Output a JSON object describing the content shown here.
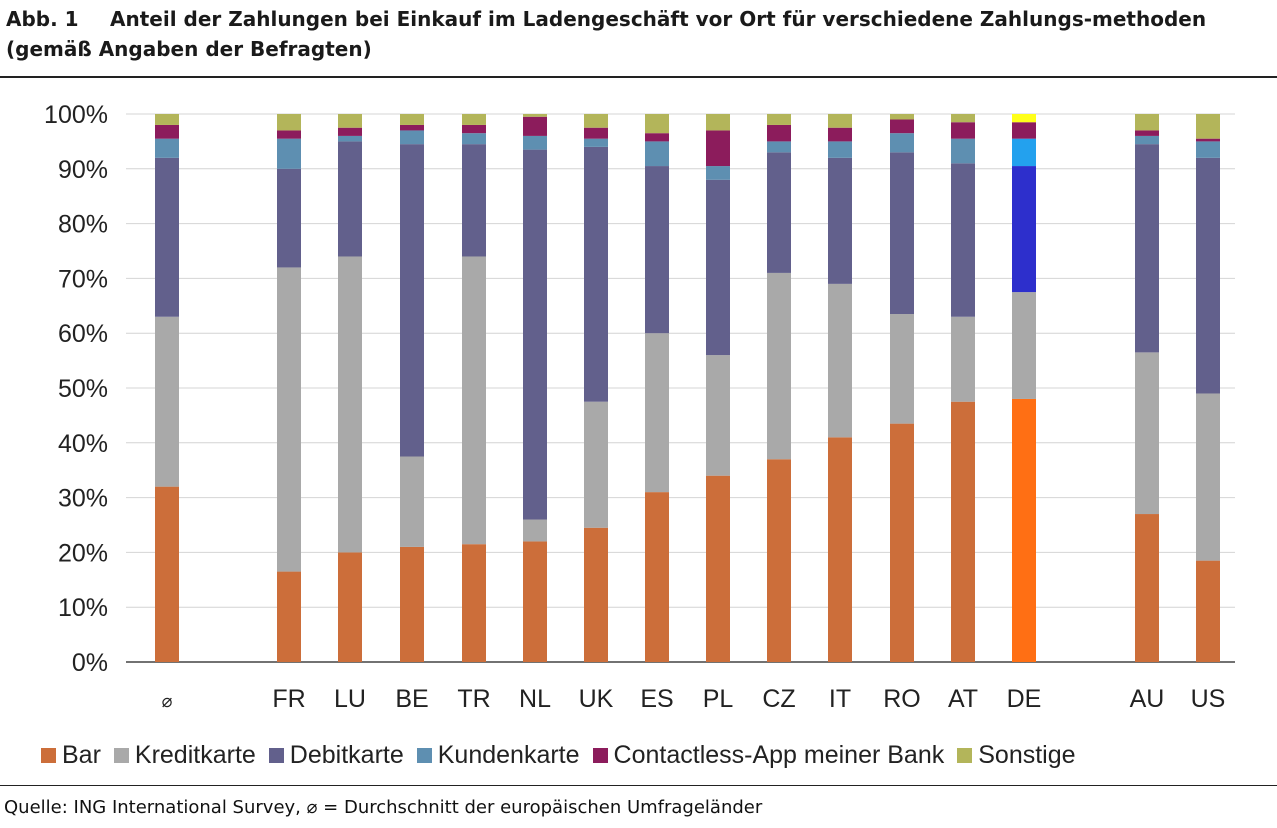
{
  "figure": {
    "label": "Abb. 1",
    "title": "Anteil der Zahlungen bei Einkauf im Ladengeschäft vor Ort für verschiedene Zahlungs-methoden (gemäß Angaben der Befragten)",
    "source": "Quelle: ING International Survey, ⌀ = Durchschnitt der europäischen Umfrageländer"
  },
  "colors": {
    "Bar": "#cc6e3a",
    "Kreditkarte": "#a9a9a9",
    "Debitkarte": "#62608c",
    "Kundenkarte": "#5e8fb1",
    "Contactless-App meiner Bank": "#8c1c5c",
    "Sonstige": "#b3b55a",
    "highlight": {
      "Bar": "#ff6f14",
      "Kreditkarte": "#a9a9a9",
      "Debitkarte": "#2d2fcc",
      "Kundenkarte": "#23a1ee",
      "Contactless-App meiner Bank": "#8c1c5c",
      "Sonstige": "#ffff1a"
    }
  },
  "chart_data": {
    "type": "bar",
    "stacked": true,
    "title": "",
    "xlabel": "",
    "ylabel": "",
    "ylim": [
      0,
      100
    ],
    "yticks": [
      "0%",
      "10%",
      "20%",
      "30%",
      "40%",
      "50%",
      "60%",
      "70%",
      "80%",
      "90%",
      "100%"
    ],
    "legend_position": "bottom",
    "grid": true,
    "categories": [
      "⌀",
      "FR",
      "LU",
      "BE",
      "TR",
      "NL",
      "UK",
      "ES",
      "PL",
      "CZ",
      "IT",
      "RO",
      "AT",
      "DE",
      "AU",
      "US"
    ],
    "highlighted_category": "DE",
    "series": [
      {
        "name": "Bar",
        "values": [
          32,
          16.5,
          20,
          21,
          21.5,
          22,
          24.5,
          31,
          34,
          37,
          41,
          43.5,
          47.5,
          48,
          27,
          18.5
        ]
      },
      {
        "name": "Kreditkarte",
        "values": [
          31,
          55.5,
          54,
          16.5,
          52.5,
          4,
          23,
          29,
          22,
          34,
          28,
          20,
          15.5,
          19.5,
          29.5,
          30.5
        ]
      },
      {
        "name": "Debitkarte",
        "values": [
          29,
          18,
          21,
          57,
          20.5,
          67.5,
          46.5,
          30.5,
          32,
          22,
          23,
          29.5,
          28,
          23,
          38,
          43
        ]
      },
      {
        "name": "Kundenkarte",
        "values": [
          3.5,
          5.5,
          1,
          2.5,
          2,
          2.5,
          1.5,
          4.5,
          2.5,
          2,
          3,
          3.5,
          4.5,
          5,
          1.5,
          3
        ]
      },
      {
        "name": "Contactless-App meiner Bank",
        "values": [
          2.5,
          1.5,
          1.5,
          1,
          1.5,
          3.5,
          2,
          1.5,
          6.5,
          3,
          2.5,
          2.5,
          3,
          3,
          1,
          0.5
        ]
      },
      {
        "name": "Sonstige",
        "values": [
          2,
          3,
          2.5,
          2,
          2,
          0.5,
          2.5,
          3.5,
          3,
          2,
          2.5,
          1,
          1.5,
          1.5,
          3,
          4.5
        ]
      }
    ]
  }
}
